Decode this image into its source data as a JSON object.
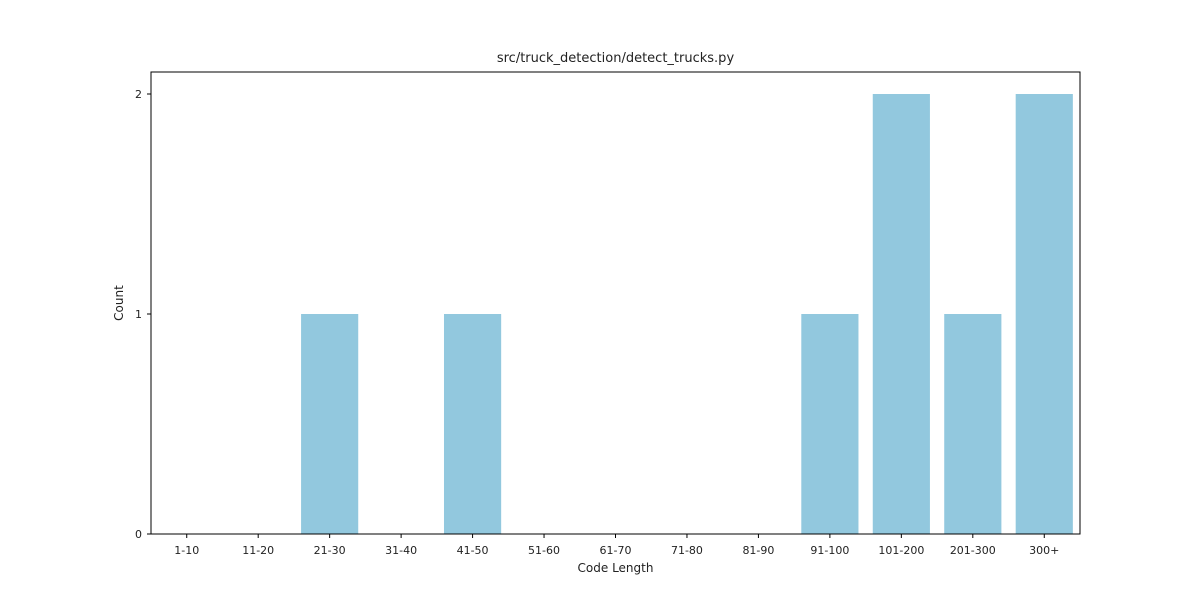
{
  "chart_data": {
    "type": "bar",
    "title": "src/truck_detection/detect_trucks.py",
    "xlabel": "Code Length",
    "ylabel": "Count",
    "categories": [
      "1-10",
      "11-20",
      "21-30",
      "31-40",
      "41-50",
      "51-60",
      "61-70",
      "71-80",
      "81-90",
      "91-100",
      "101-200",
      "201-300",
      "300+"
    ],
    "values": [
      0,
      0,
      1,
      0,
      1,
      0,
      0,
      0,
      0,
      1,
      2,
      1,
      2
    ],
    "ylim": [
      0,
      2.1
    ],
    "yticks": [
      "0",
      "1",
      "2"
    ],
    "grid": false,
    "bar_color": "#92c8de"
  }
}
